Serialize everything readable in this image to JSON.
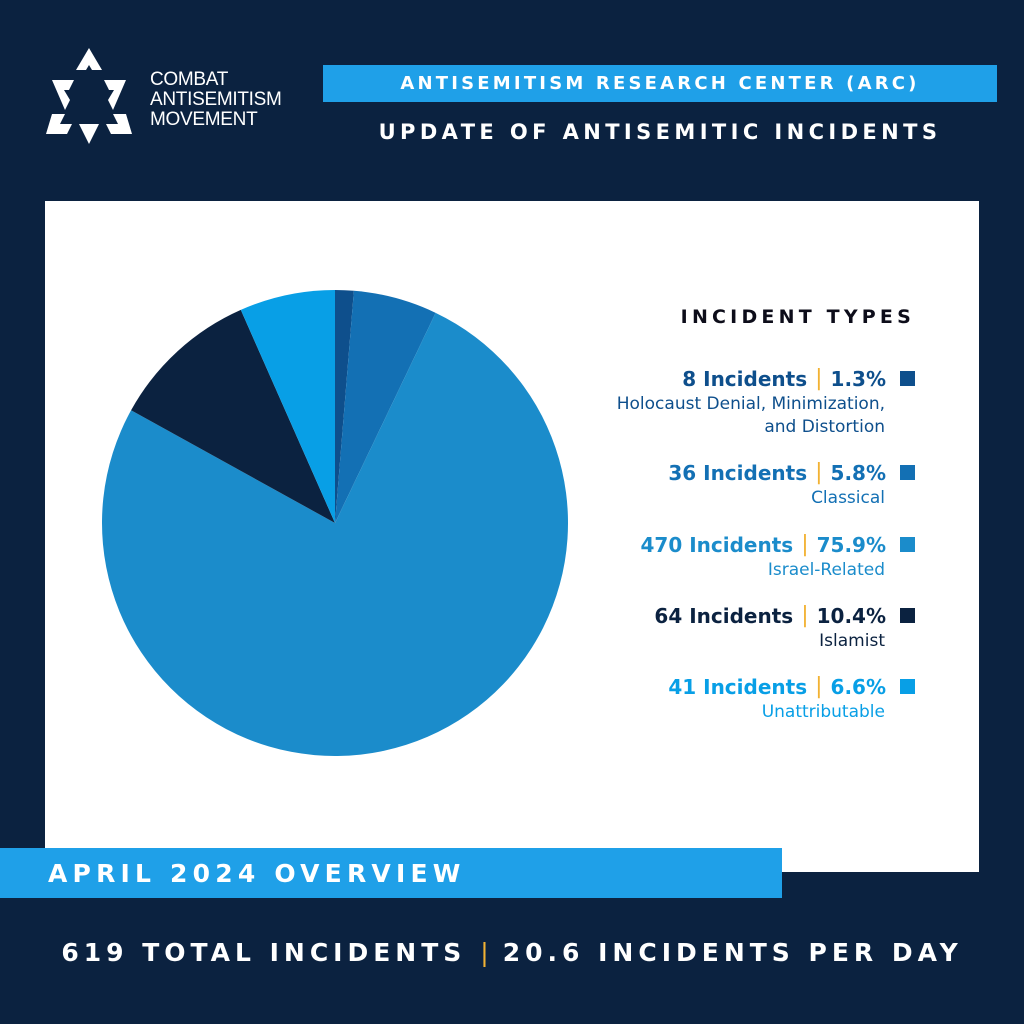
{
  "brand": {
    "lines": [
      "COMBAT",
      "ANTISEMITISM",
      "MOVEMENT"
    ],
    "logo_icon": "star-of-david-icon"
  },
  "header": {
    "org": "ANTISEMITISM RESEARCH CENTER (ARC)",
    "subtitle": "UPDATE OF ANTISEMITIC INCIDENTS"
  },
  "chart_data": {
    "type": "pie",
    "title": "INCIDENT TYPES",
    "slices": [
      {
        "label": "Holocaust Denial, Minimization, and Distortion",
        "desc_lines": [
          "Holocaust Denial, Minimization,",
          "and Distortion"
        ],
        "value": 8,
        "value_text": "8 Incidents",
        "percent": 1.3,
        "percent_text": "1.3%",
        "color": "#0e4f8c"
      },
      {
        "label": "Classical",
        "desc_lines": [
          "Classical"
        ],
        "value": 36,
        "value_text": "36 Incidents",
        "percent": 5.8,
        "percent_text": "5.8%",
        "color": "#1370b4"
      },
      {
        "label": "Israel-Related",
        "desc_lines": [
          "Israel-Related"
        ],
        "value": 470,
        "value_text": "470 Incidents",
        "percent": 75.9,
        "percent_text": "75.9%",
        "color": "#1b8ccb"
      },
      {
        "label": "Islamist",
        "desc_lines": [
          "Islamist"
        ],
        "value": 64,
        "value_text": "64 Incidents",
        "percent": 10.4,
        "percent_text": "10.4%",
        "color": "#0b2240"
      },
      {
        "label": "Unattributable",
        "desc_lines": [
          "Unattributable"
        ],
        "value": 41,
        "value_text": "41 Incidents",
        "percent": 6.6,
        "percent_text": "6.6%",
        "color": "#089fe6"
      }
    ],
    "separator": "|",
    "accent_color": "#f2b233"
  },
  "overview": {
    "label": "APRIL 2024 OVERVIEW"
  },
  "footer": {
    "total": "619 TOTAL INCIDENTS",
    "separator": "|",
    "per_day": "20.6 INCIDENTS PER DAY"
  }
}
